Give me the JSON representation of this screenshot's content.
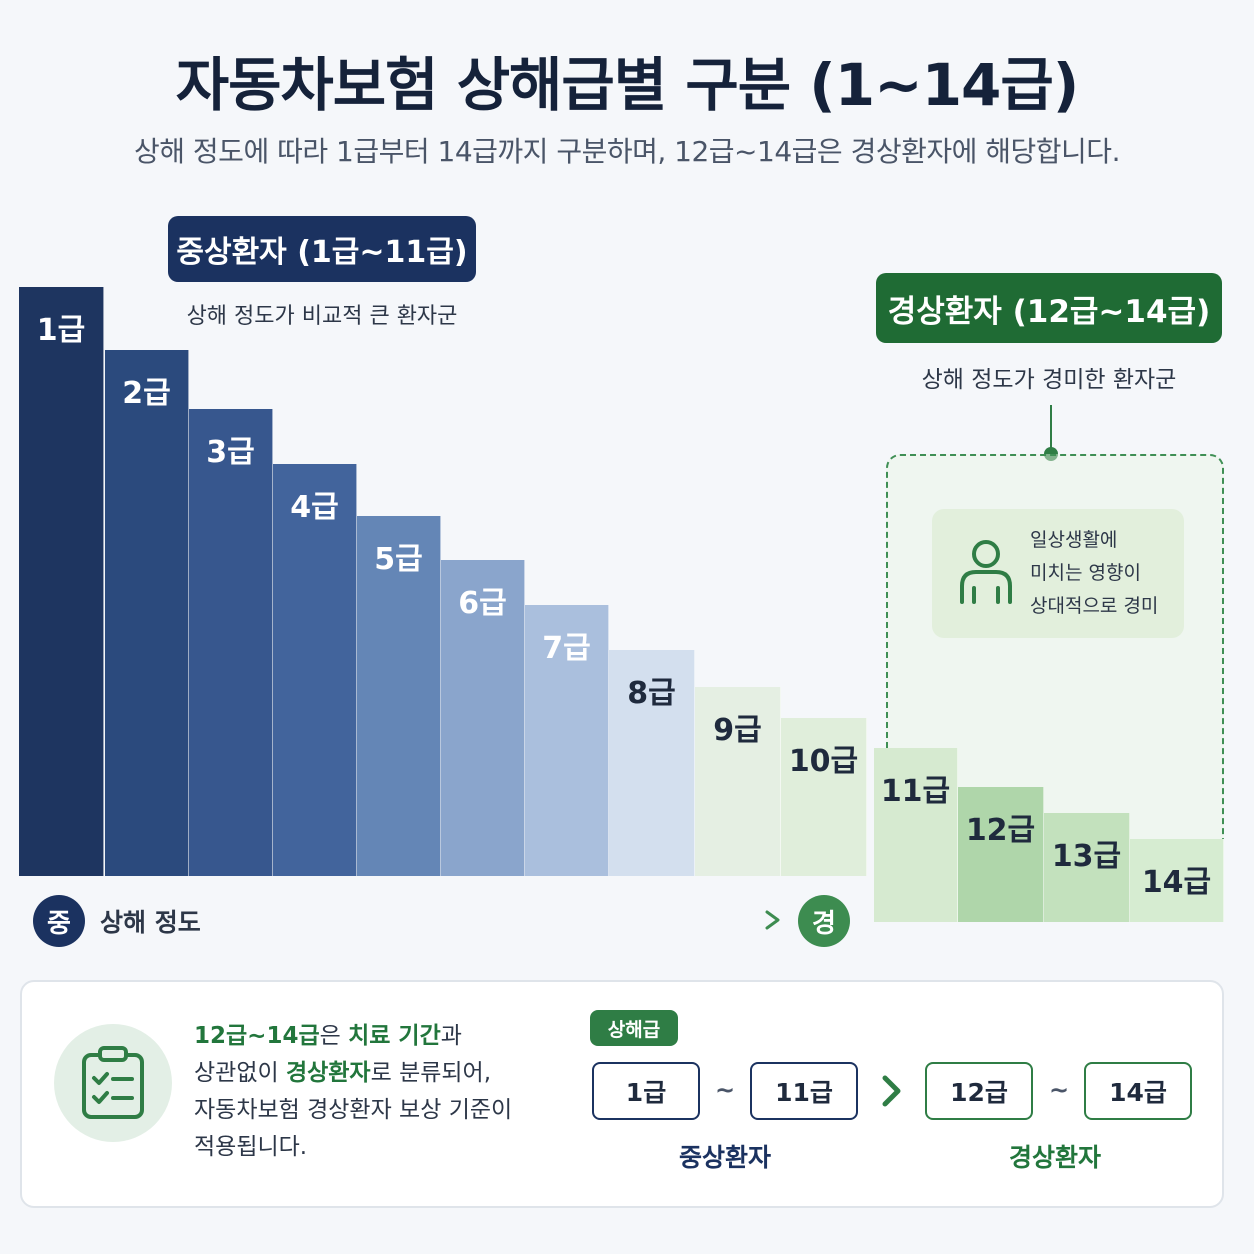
{
  "title": "자동차보험 상해급별 구분 (1~14급)",
  "subtitle": "상해 정도에 따라 1급부터 14급까지 구분하며, 12급~14급은 경상환자에 해당합니다.",
  "severe": {
    "badge": "중상환자 (1급~11급)",
    "desc": "상해 정도가 비교적 큰 환자군",
    "color": "#1b3260"
  },
  "mild": {
    "badge": "경상환자 (12급~14급)",
    "desc": "상해 정도가 경미한 환자군",
    "color": "#1f6b34",
    "info_lines": [
      "일상생활에",
      "미치는 영향이",
      "상대적으로 경미"
    ],
    "info_icon": "person-icon"
  },
  "bars": [
    {
      "label": "1급",
      "color": "#1e3560"
    },
    {
      "label": "2급",
      "color": "#2b4a7d"
    },
    {
      "label": "3급",
      "color": "#37578e"
    },
    {
      "label": "4급",
      "color": "#42649c"
    },
    {
      "label": "5급",
      "color": "#6486b6"
    },
    {
      "label": "6급",
      "color": "#8aa5cc"
    },
    {
      "label": "7급",
      "color": "#aabfdd"
    },
    {
      "label": "8급",
      "color": "#d3dfee"
    },
    {
      "label": "9급",
      "color": "#e5efe3"
    },
    {
      "label": "10급",
      "color": "#e0eedb"
    },
    {
      "label": "11급",
      "color": "#d6ead0"
    },
    {
      "label": "12급",
      "color": "#afd6aa"
    },
    {
      "label": "13급",
      "color": "#c3e1bd"
    },
    {
      "label": "14급",
      "color": "#d6ecd1"
    }
  ],
  "axis": {
    "severe_marker": "중",
    "mild_marker": "경",
    "label": "상해 정도",
    "severe_color": "#1b3260",
    "mild_color": "#3d8c50"
  },
  "summary": {
    "icon": "clipboard-check-icon",
    "note": {
      "line1_hl": "12급~14급",
      "line1_a": "은 ",
      "line1_hl2": "치료 기간",
      "line1_b": "과",
      "line2_a": "상관없이 ",
      "line2_hl": "경상환자",
      "line2_b": "로 분류되어,",
      "line3": "자동차보험 경상환자 보상 기준이",
      "line4": "적용됩니다."
    },
    "grade_tag": "상해급",
    "severe_from": "1급",
    "severe_to": "11급",
    "mild_from": "12급",
    "mild_to": "14급",
    "tilde": "~",
    "severe_label": "중상환자",
    "mild_label": "경상환자"
  }
}
